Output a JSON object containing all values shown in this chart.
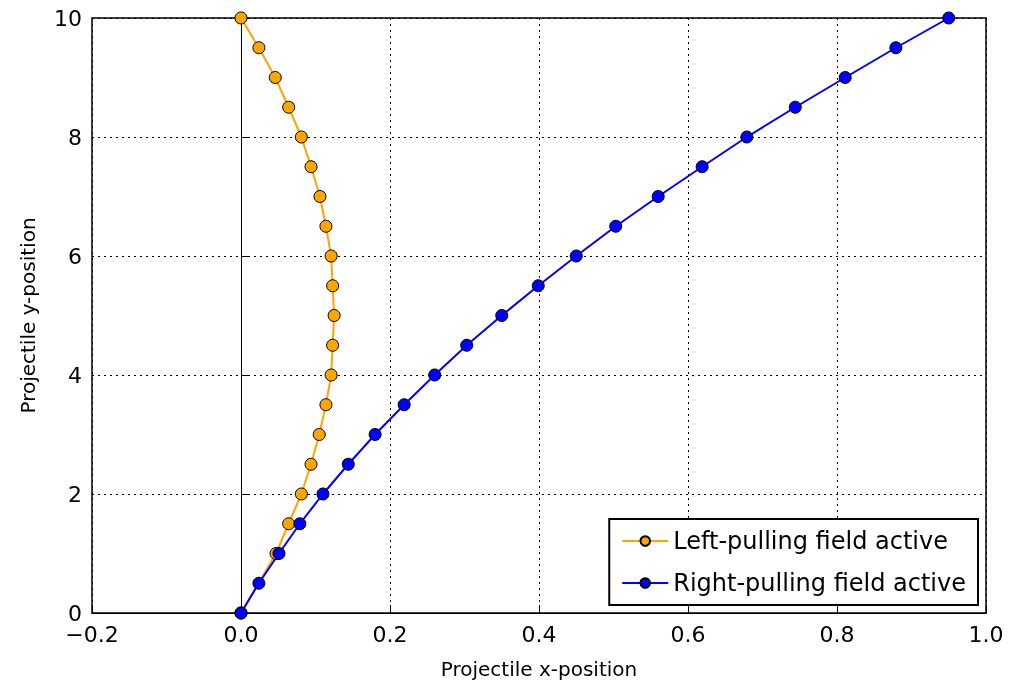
{
  "chart_data": {
    "type": "line",
    "xlabel": "Projectile x-position",
    "ylabel": "Projectile y-position",
    "xlim": [
      -0.2,
      1.0
    ],
    "xticks": [
      {
        "value": -0.2,
        "label": "−0.2"
      },
      {
        "value": 0,
        "label": "0.0"
      },
      {
        "value": 0.2,
        "label": "0.2"
      },
      {
        "value": 0.4,
        "label": "0.4"
      },
      {
        "value": 0.6,
        "label": "0.6"
      },
      {
        "value": 0.8,
        "label": "0.8"
      },
      {
        "value": 1.0,
        "label": "1.0"
      }
    ],
    "ylim": [
      0,
      10
    ],
    "yticks": [
      0,
      2,
      4,
      6,
      8,
      10
    ],
    "grid": true,
    "legend": "bottom right",
    "marker": "circle",
    "line_style": "solid",
    "series": [
      {
        "name": "Left-pulling field active",
        "color": "#ffa500",
        "x": [
          0,
          0.024,
          0.047,
          0.064,
          0.081,
          0.094,
          0.105,
          0.114,
          0.121,
          0.123,
          0.125,
          0.123,
          0.121,
          0.114,
          0.106,
          0.094,
          0.081,
          0.064,
          0.046,
          0.024,
          0
        ],
        "values": [
          0,
          null,
          1,
          1.5,
          2,
          2.5,
          3,
          3.5,
          4,
          4.5,
          5,
          5.5,
          6,
          6.5,
          7,
          7.5,
          8,
          8.5,
          9,
          9.5,
          10
        ]
      },
      {
        "name": "Right-pulling field active",
        "color": "#0000ff",
        "x": [
          0,
          0.024,
          0.051,
          0.079,
          0.11,
          0.144,
          0.18,
          0.219,
          0.26,
          0.303,
          0.35,
          0.399,
          0.45,
          0.503,
          0.56,
          0.619,
          0.679,
          0.744,
          0.811,
          0.879,
          0.95
        ],
        "values": [
          0,
          0.5,
          1,
          1.5,
          2,
          2.5,
          3,
          3.5,
          4,
          4.5,
          5,
          5.5,
          6,
          6.5,
          7,
          7.5,
          8,
          8.5,
          9,
          9.5,
          10
        ]
      }
    ]
  }
}
